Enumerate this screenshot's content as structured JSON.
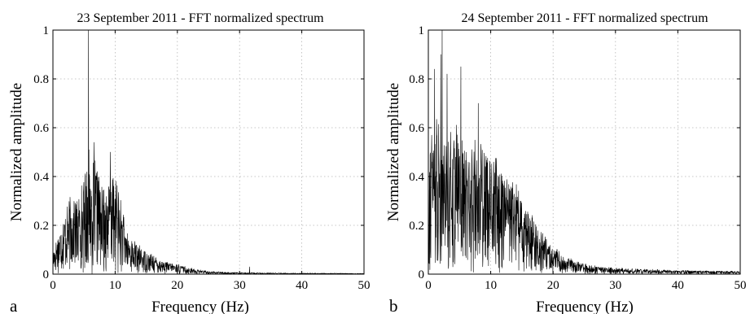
{
  "chart_data": [
    {
      "type": "line",
      "panel_letter": "a",
      "title": "23 September 2011 - FFT normalized spectrum",
      "xlabel": "Frequency (Hz)",
      "ylabel": "Normalized amplitude",
      "xlim": [
        0,
        50
      ],
      "ylim": [
        0,
        1
      ],
      "xticks": [
        "0",
        "10",
        "20",
        "30",
        "40",
        "50"
      ],
      "yticks": [
        "0",
        "0.2",
        "0.4",
        "0.6",
        "0.8",
        "1"
      ],
      "grid": true,
      "legend": "none",
      "envelope_hz": [
        0,
        1,
        2,
        3,
        4,
        5,
        5.7,
        6,
        7,
        8,
        9,
        10,
        11,
        12,
        14,
        16,
        18,
        20,
        22,
        25,
        28,
        31.5,
        35,
        40,
        45,
        50
      ],
      "envelope_amp": [
        0.1,
        0.18,
        0.26,
        0.32,
        0.3,
        0.38,
        0.52,
        0.42,
        0.45,
        0.33,
        0.38,
        0.4,
        0.28,
        0.16,
        0.11,
        0.08,
        0.05,
        0.04,
        0.025,
        0.012,
        0.008,
        0.006,
        0.005,
        0.004,
        0.004,
        0.003
      ],
      "peaks": [
        {
          "x": 5.7,
          "y": 1.0
        },
        {
          "x": 6.6,
          "y": 0.54
        },
        {
          "x": 9.2,
          "y": 0.5
        },
        {
          "x": 31.6,
          "y": 0.03
        }
      ]
    },
    {
      "type": "line",
      "panel_letter": "b",
      "title": "24 September 2011 - FFT normalized spectrum",
      "xlabel": "Frequency (Hz)",
      "ylabel": "Normalized amplitude",
      "xlim": [
        0,
        50
      ],
      "ylim": [
        0,
        1
      ],
      "xticks": [
        "0",
        "10",
        "20",
        "30",
        "40",
        "50"
      ],
      "yticks": [
        "0",
        "0.2",
        "0.4",
        "0.6",
        "0.8",
        "1"
      ],
      "grid": true,
      "legend": "none",
      "envelope_hz": [
        0,
        0.5,
        1,
        2,
        3,
        4,
        5,
        6,
        8,
        10,
        12,
        14,
        16,
        18,
        20,
        22,
        24,
        26,
        30,
        35,
        40,
        45,
        50
      ],
      "envelope_amp": [
        0.55,
        0.6,
        0.62,
        0.62,
        0.58,
        0.6,
        0.62,
        0.5,
        0.55,
        0.48,
        0.42,
        0.36,
        0.26,
        0.18,
        0.11,
        0.07,
        0.05,
        0.035,
        0.025,
        0.02,
        0.016,
        0.013,
        0.012
      ],
      "peaks": [
        {
          "x": 1.0,
          "y": 0.84
        },
        {
          "x": 2.0,
          "y": 0.9
        },
        {
          "x": 2.2,
          "y": 1.0
        },
        {
          "x": 3.0,
          "y": 0.82
        },
        {
          "x": 5.2,
          "y": 0.85
        },
        {
          "x": 8.0,
          "y": 0.7
        }
      ]
    }
  ]
}
